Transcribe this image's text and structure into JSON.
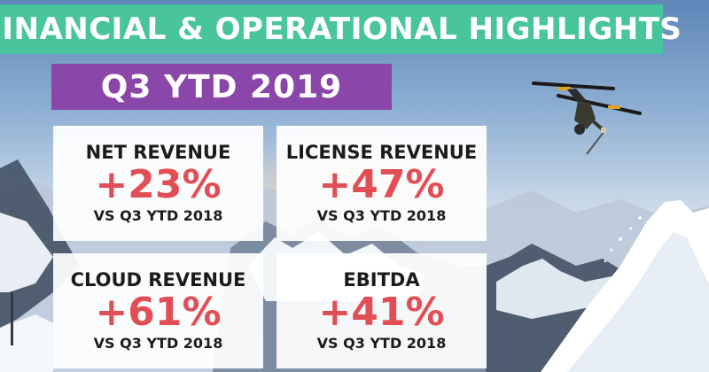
{
  "header": {
    "title": "FINANCIAL & OPERATIONAL HIGHLIGHTS",
    "subtitle": "Q3 YTD 2019"
  },
  "metrics": [
    {
      "label": "NET REVENUE",
      "value": "+23%",
      "comparison": "VS Q3 YTD 2018"
    },
    {
      "label": "LICENSE REVENUE",
      "value": "+47%",
      "comparison": "VS Q3 YTD 2018"
    },
    {
      "label": "CLOUD REVENUE",
      "value": "+61%",
      "comparison": "VS Q3 YTD 2018"
    },
    {
      "label": "EBITDA",
      "value": "+41%",
      "comparison": "VS Q3 YTD 2018"
    }
  ],
  "colors": {
    "title_banner": "#48c59d",
    "subtitle_banner": "#8a46a8",
    "value_text": "#e24e56",
    "label_text": "#1b1b1b"
  },
  "background": {
    "icon": "skier-photo"
  }
}
